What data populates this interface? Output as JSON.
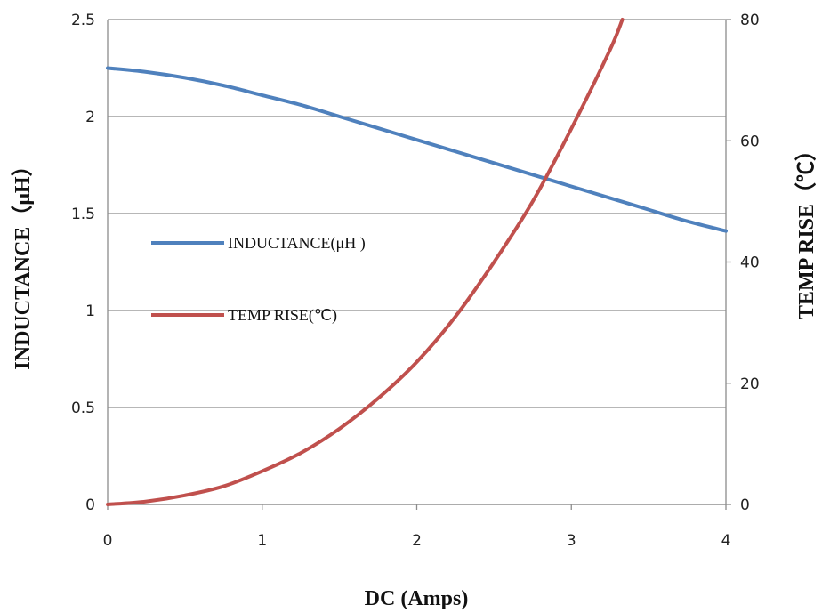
{
  "chart_data": {
    "type": "line",
    "xlabel": "DC (Amps)",
    "ylabel": "INDUCTANCE（μH）",
    "y2label": "TEMP RISE（℃）",
    "xlim": [
      0,
      4
    ],
    "ylim": [
      0,
      2.5
    ],
    "y2lim": [
      0,
      80
    ],
    "x_ticks": [
      "0",
      "1",
      "2",
      "3",
      "4"
    ],
    "y_ticks": [
      "0",
      "0.5",
      "1",
      "1.5",
      "2",
      "2.5"
    ],
    "y2_ticks": [
      "0",
      "20",
      "40",
      "60",
      "80"
    ],
    "grid": true,
    "legend_position": "center-left",
    "series": [
      {
        "name": "INDUCTANCE(μH )",
        "axis": "left",
        "color": "#4f81bd",
        "x": [
          0,
          0.25,
          0.5,
          0.75,
          1,
          1.25,
          1.5,
          1.75,
          2,
          2.25,
          2.5,
          2.75,
          3,
          3.25,
          3.5,
          3.75,
          4
        ],
        "y": [
          2.25,
          2.23,
          2.2,
          2.16,
          2.11,
          2.06,
          2.0,
          1.94,
          1.88,
          1.82,
          1.76,
          1.7,
          1.64,
          1.58,
          1.52,
          1.46,
          1.41
        ]
      },
      {
        "name": "TEMP RISE(℃)",
        "axis": "right",
        "color": "#c0504d",
        "x": [
          0,
          0.25,
          0.5,
          0.75,
          1,
          1.25,
          1.5,
          1.75,
          2,
          2.25,
          2.5,
          2.75,
          3,
          3.25,
          3.33
        ],
        "y": [
          0,
          0.5,
          1.5,
          3,
          5.5,
          8.5,
          12.5,
          17.5,
          23.5,
          31,
          40,
          50,
          62,
          75,
          80
        ]
      }
    ]
  }
}
